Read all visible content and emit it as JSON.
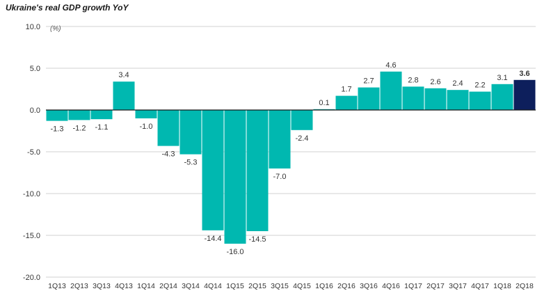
{
  "chart_data": {
    "type": "bar",
    "title": "Ukraine's real GDP growth YoY",
    "unit_label": "(%)",
    "categories": [
      "1Q13",
      "2Q13",
      "3Q13",
      "4Q13",
      "1Q14",
      "2Q14",
      "3Q14",
      "4Q14",
      "1Q15",
      "2Q15",
      "3Q15",
      "4Q15",
      "1Q16",
      "2Q16",
      "3Q16",
      "4Q16",
      "1Q17",
      "2Q17",
      "3Q17",
      "4Q17",
      "1Q18",
      "2Q18"
    ],
    "values": [
      -1.3,
      -1.2,
      -1.1,
      3.4,
      -1.0,
      -4.3,
      -5.3,
      -14.4,
      -16.0,
      -14.5,
      -7.0,
      -2.4,
      0.1,
      1.7,
      2.7,
      4.6,
      2.8,
      2.6,
      2.4,
      2.2,
      3.1,
      3.6
    ],
    "value_labels": [
      "-1.3",
      "-1.2",
      "-1.1",
      "3.4",
      "-1.0",
      "-4.3",
      "-5.3",
      "-14.4",
      "-16.0",
      "-14.5",
      "-7.0",
      "-2.4",
      "0.1",
      "1.7",
      "2.7",
      "4.6",
      "2.8",
      "2.6",
      "2.4",
      "2.2",
      "3.1",
      "3.6"
    ],
    "highlight_index": 21,
    "ylim": [
      -20,
      10
    ],
    "yticks": [
      10,
      5,
      0,
      -5,
      -10,
      -15,
      -20
    ],
    "ytick_labels": [
      "10.0",
      "5.0",
      "0.0",
      "-5.0",
      "-10.0",
      "-15.0",
      "-20.0"
    ],
    "xlabel": "",
    "ylabel": "",
    "grid": true,
    "legend": "none",
    "colors": {
      "bar": "#00b8b0",
      "highlight": "#0d1f5c",
      "grid": "#d0d0d0",
      "zero": "#1a1a1a",
      "text": "#333333"
    }
  }
}
